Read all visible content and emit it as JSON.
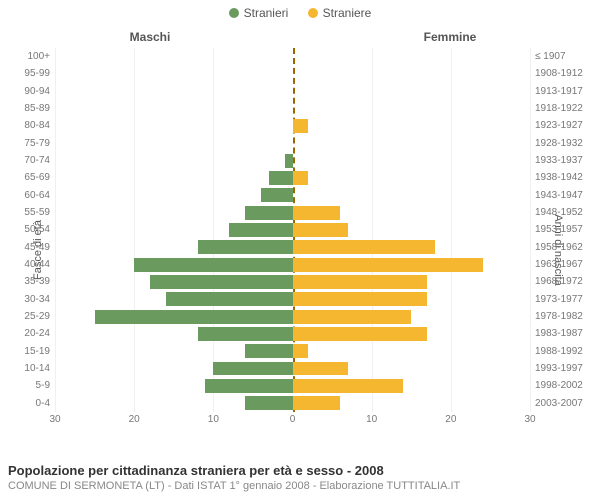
{
  "legend": {
    "male": {
      "label": "Stranieri",
      "color": "#6a9a5e"
    },
    "female": {
      "label": "Straniere",
      "color": "#f5b730"
    }
  },
  "headers": {
    "left": "Maschi",
    "right": "Femmine"
  },
  "axis_titles": {
    "left": "Fasce di età",
    "right": "Anni di nascita"
  },
  "x_axis": {
    "max": 30,
    "ticks": [
      30,
      20,
      10,
      0,
      10,
      20,
      30
    ]
  },
  "footer": {
    "title": "Popolazione per cittadinanza straniera per età e sesso - 2008",
    "subtitle": "COMUNE DI SERMONETA (LT) - Dati ISTAT 1° gennaio 2008 - Elaborazione TUTTITALIA.IT"
  },
  "colors": {
    "axis_dash": "#996600",
    "grid": "#f0f0f0",
    "text_muted": "#777777"
  },
  "rows": [
    {
      "age": "100+",
      "birth": "≤ 1907",
      "m": 0,
      "f": 0
    },
    {
      "age": "95-99",
      "birth": "1908-1912",
      "m": 0,
      "f": 0
    },
    {
      "age": "90-94",
      "birth": "1913-1917",
      "m": 0,
      "f": 0
    },
    {
      "age": "85-89",
      "birth": "1918-1922",
      "m": 0,
      "f": 0
    },
    {
      "age": "80-84",
      "birth": "1923-1927",
      "m": 0,
      "f": 2
    },
    {
      "age": "75-79",
      "birth": "1928-1932",
      "m": 0,
      "f": 0
    },
    {
      "age": "70-74",
      "birth": "1933-1937",
      "m": 1,
      "f": 0
    },
    {
      "age": "65-69",
      "birth": "1938-1942",
      "m": 3,
      "f": 2
    },
    {
      "age": "60-64",
      "birth": "1943-1947",
      "m": 4,
      "f": 0
    },
    {
      "age": "55-59",
      "birth": "1948-1952",
      "m": 6,
      "f": 6
    },
    {
      "age": "50-54",
      "birth": "1953-1957",
      "m": 8,
      "f": 7
    },
    {
      "age": "45-49",
      "birth": "1958-1962",
      "m": 12,
      "f": 18
    },
    {
      "age": "40-44",
      "birth": "1963-1967",
      "m": 20,
      "f": 24
    },
    {
      "age": "35-39",
      "birth": "1968-1972",
      "m": 18,
      "f": 17
    },
    {
      "age": "30-34",
      "birth": "1973-1977",
      "m": 16,
      "f": 17
    },
    {
      "age": "25-29",
      "birth": "1978-1982",
      "m": 25,
      "f": 15
    },
    {
      "age": "20-24",
      "birth": "1983-1987",
      "m": 12,
      "f": 17
    },
    {
      "age": "15-19",
      "birth": "1988-1992",
      "m": 6,
      "f": 2
    },
    {
      "age": "10-14",
      "birth": "1993-1997",
      "m": 10,
      "f": 7
    },
    {
      "age": "5-9",
      "birth": "1998-2002",
      "m": 11,
      "f": 14
    },
    {
      "age": "0-4",
      "birth": "2003-2007",
      "m": 6,
      "f": 6
    }
  ]
}
